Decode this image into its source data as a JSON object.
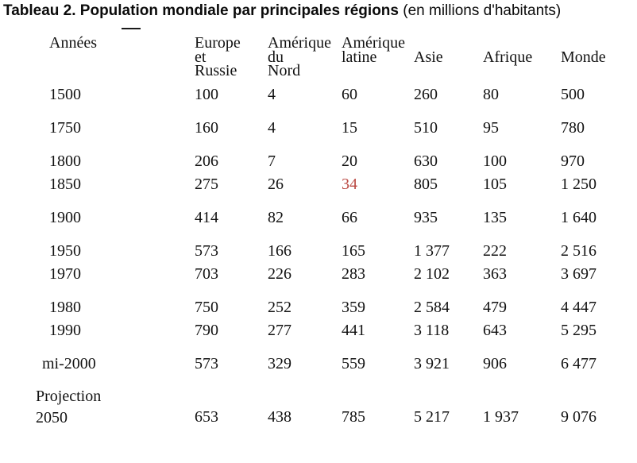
{
  "title": {
    "bold": "Tableau 2. Population mondiale par principales régions",
    "normal": " (en millions d'habitants)"
  },
  "colors": {
    "highlight_red": "#bb4a44",
    "text": "#121212"
  },
  "table": {
    "columns": [
      "Années",
      "Europe\net\nRussie",
      "Amérique\ndu\nNord",
      "Amérique\nlatine",
      "Asie",
      "Afrique",
      "Monde"
    ],
    "rows": [
      {
        "label": "1500",
        "values": [
          "100",
          "4",
          "60",
          "260",
          "80",
          "500"
        ],
        "styles": [
          null,
          null,
          null,
          null,
          null,
          null
        ]
      },
      {
        "label": "1750",
        "values": [
          "160",
          "4",
          "15",
          "510",
          "95",
          "780"
        ],
        "styles": [
          null,
          null,
          null,
          null,
          null,
          null
        ]
      },
      {
        "label": "1800",
        "values": [
          "206",
          "7",
          "20",
          "630",
          "100",
          "970"
        ],
        "styles": [
          null,
          null,
          "bold",
          null,
          null,
          null
        ]
      },
      {
        "label": "1850",
        "values": [
          "275",
          "26",
          "34",
          "805",
          "105",
          "1 250"
        ],
        "styles": [
          null,
          null,
          "bold-red",
          null,
          null,
          null
        ]
      },
      {
        "label": "1900",
        "values": [
          "414",
          "82",
          "66",
          "935",
          "135",
          "1 640"
        ],
        "styles": [
          null,
          null,
          "bold",
          null,
          null,
          null
        ]
      },
      {
        "label": "1950",
        "values": [
          "573",
          "166",
          "165",
          "1 377",
          "222",
          "2 516"
        ],
        "styles": [
          null,
          null,
          null,
          null,
          null,
          null
        ]
      },
      {
        "label": "1970",
        "values": [
          "703",
          "226",
          "283",
          "2 102",
          "363",
          "3 697"
        ],
        "styles": [
          null,
          null,
          null,
          null,
          null,
          null
        ]
      },
      {
        "label": "1980",
        "values": [
          "750",
          "252",
          "359",
          "2 584",
          "479",
          "4 447"
        ],
        "styles": [
          null,
          null,
          null,
          null,
          null,
          null
        ]
      },
      {
        "label": "1990",
        "values": [
          "790",
          "277",
          "441",
          "3 118",
          "643",
          "5 295"
        ],
        "styles": [
          null,
          null,
          null,
          null,
          null,
          null
        ]
      },
      {
        "label": "mi-2000",
        "values": [
          "573",
          "329",
          "559",
          "3 921",
          "906",
          "6 477"
        ],
        "styles": [
          null,
          null,
          null,
          null,
          null,
          null
        ]
      },
      {
        "label": "Projection\n2050",
        "values": [
          "653",
          "438",
          "785",
          "5 217",
          "1 937",
          "9 076"
        ],
        "styles": [
          null,
          null,
          null,
          null,
          null,
          null
        ]
      }
    ]
  }
}
